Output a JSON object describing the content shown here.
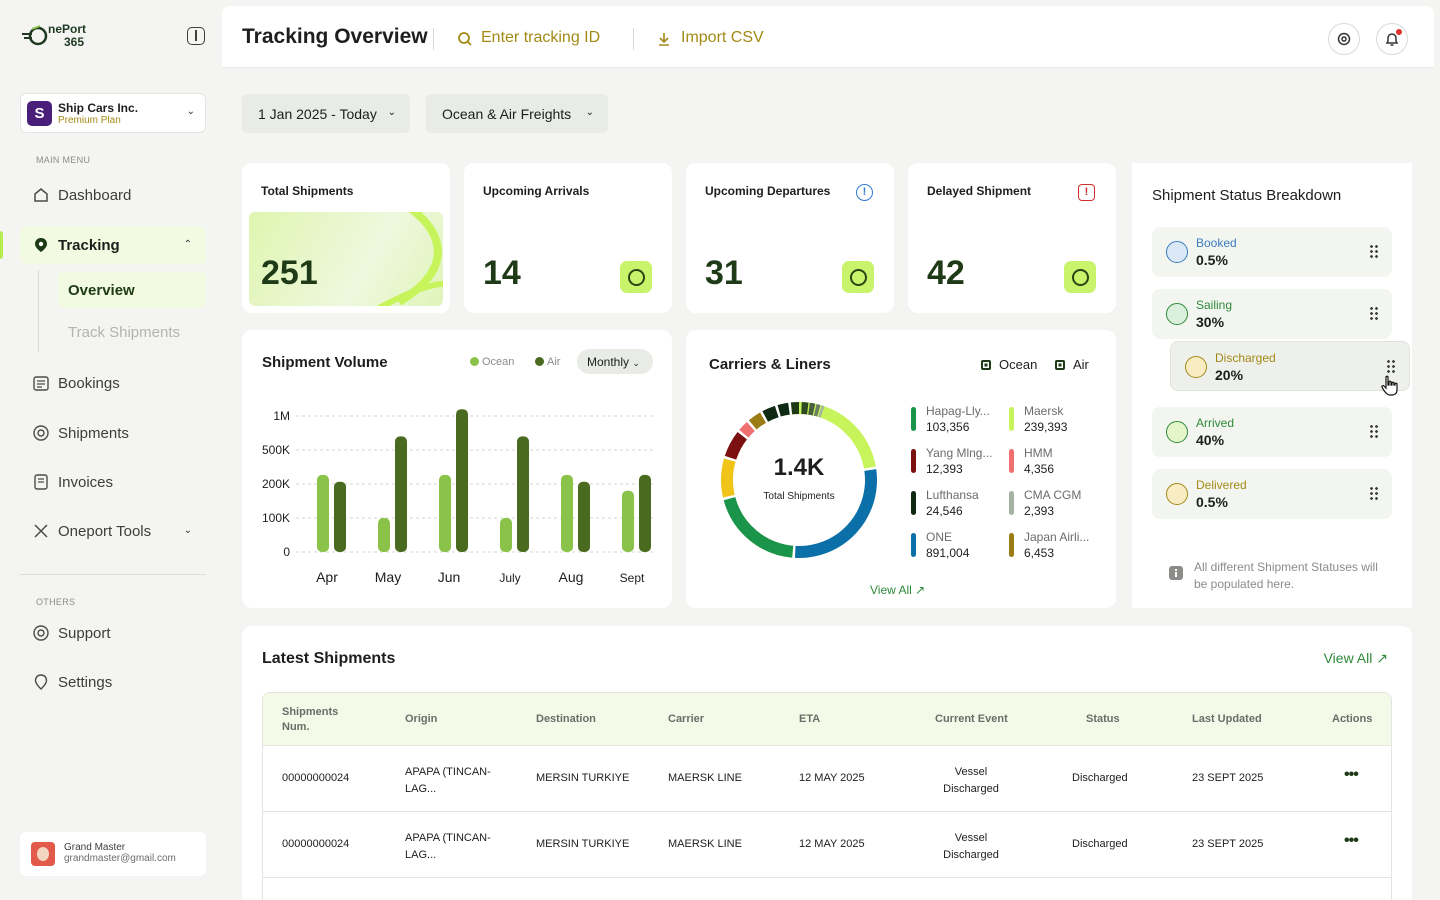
{
  "brand": {
    "logo_top": "nePort",
    "logo_bottom": "365"
  },
  "org": {
    "initial": "S",
    "name": "Ship Cars Inc.",
    "plan": "Premium Plan"
  },
  "sidebar": {
    "main_menu_label": "MAIN MENU",
    "items": [
      {
        "label": "Dashboard"
      },
      {
        "label": "Tracking"
      },
      {
        "label": "Bookings"
      },
      {
        "label": "Shipments"
      },
      {
        "label": "Invoices"
      },
      {
        "label": "Oneport Tools"
      }
    ],
    "tracking_sub": [
      {
        "label": "Overview"
      },
      {
        "label": "Track Shipments"
      }
    ],
    "others_label": "OTHERS",
    "others": [
      {
        "label": "Support"
      },
      {
        "label": "Settings"
      }
    ]
  },
  "user": {
    "name": "Grand Master",
    "email": "grandmaster@gmail.com"
  },
  "header": {
    "title": "Tracking Overview",
    "search_placeholder": "Enter tracking ID",
    "import_label": "Import CSV"
  },
  "filters": {
    "date_range": "1 Jan 2025 - Today",
    "freight_type": "Ocean & Air Freights"
  },
  "stats": [
    {
      "title": "Total Shipments",
      "value": "251"
    },
    {
      "title": "Upcoming Arrivals",
      "value": "14"
    },
    {
      "title": "Upcoming Departures",
      "value": "31"
    },
    {
      "title": "Delayed Shipment",
      "value": "42"
    }
  ],
  "volume": {
    "title": "Shipment Volume",
    "legend_ocean": "Ocean",
    "legend_air": "Air",
    "period": "Monthly"
  },
  "chart_data": {
    "type": "bar",
    "categories": [
      "Apr",
      "May",
      "Jun",
      "July",
      "Aug",
      "Sept"
    ],
    "y_tick_labels": [
      "0",
      "100K",
      "200K",
      "500K",
      "1M"
    ],
    "series": [
      {
        "name": "Ocean",
        "values": [
          280000,
          100000,
          280000,
          100000,
          280000,
          180000
        ],
        "color": "#8bc34a"
      },
      {
        "name": "Air",
        "values": [
          220000,
          700000,
          1100000,
          700000,
          220000,
          280000
        ],
        "color": "#4a6b1f"
      }
    ]
  },
  "carriers": {
    "title": "Carriers & Liners",
    "legend_ocean": "Ocean",
    "legend_air": "Air",
    "total_value": "1.4K",
    "total_label": "Total Shipments",
    "view_all": "View All",
    "items": [
      {
        "name": "Hapag-Lly...",
        "value": "103,356",
        "color": "#1a9448"
      },
      {
        "name": "Maersk",
        "value": "239,393",
        "color": "#c6f45a"
      },
      {
        "name": "Yang Mlng...",
        "value": "12,393",
        "color": "#7a1010"
      },
      {
        "name": "HMM",
        "value": "4,356",
        "color": "#f07070"
      },
      {
        "name": "Lufthansa",
        "value": "24,546",
        "color": "#0f2a12"
      },
      {
        "name": "CMA CGM",
        "value": "2,393",
        "color": "#a4b3a2"
      },
      {
        "name": "ONE",
        "value": "891,004",
        "color": "#0b6fa8"
      },
      {
        "name": "Japan Airli...",
        "value": "6,453",
        "color": "#9a7b14"
      }
    ]
  },
  "status_breakdown": {
    "title": "Shipment Status Breakdown",
    "items": [
      {
        "name": "Booked",
        "pct": "0.5%",
        "color": "#3b7dbf",
        "bg": "#dbe9f6"
      },
      {
        "name": "Sailing",
        "pct": "30%",
        "color": "#2f8a3a",
        "bg": "#dbf0dc"
      },
      {
        "name": "Discharged",
        "pct": "20%",
        "color": "#a38a16",
        "bg": "#f7ecc2"
      },
      {
        "name": "Arrived",
        "pct": "40%",
        "color": "#2f8a3a",
        "bg": "#e3f5c9"
      },
      {
        "name": "Delivered",
        "pct": "0.5%",
        "color": "#a38a16",
        "bg": "#f7ecc2"
      }
    ],
    "note": "All different Shipment Statuses will be populated here."
  },
  "latest": {
    "title": "Latest Shipments",
    "view_all": "View All",
    "columns": [
      "Shipments Num.",
      "Origin",
      "Destination",
      "Carrier",
      "ETA",
      "Current Event",
      "Status",
      "Last Updated",
      "Actions"
    ],
    "rows": [
      {
        "num": "00000000024",
        "origin": "APAPA (TINCAN-LAG...",
        "destination": "MERSIN TURKIYE",
        "carrier": "MAERSK LINE",
        "eta": "12 MAY 2025",
        "event": "Vessel Discharged",
        "status": "Discharged",
        "updated": "23 SEPT 2025"
      },
      {
        "num": "00000000024",
        "origin": "APAPA (TINCAN-LAG...",
        "destination": "MERSIN TURKIYE",
        "carrier": "MAERSK LINE",
        "eta": "12 MAY 2025",
        "event": "Vessel Discharged",
        "status": "Discharged",
        "updated": "23 SEPT 2025"
      }
    ]
  }
}
